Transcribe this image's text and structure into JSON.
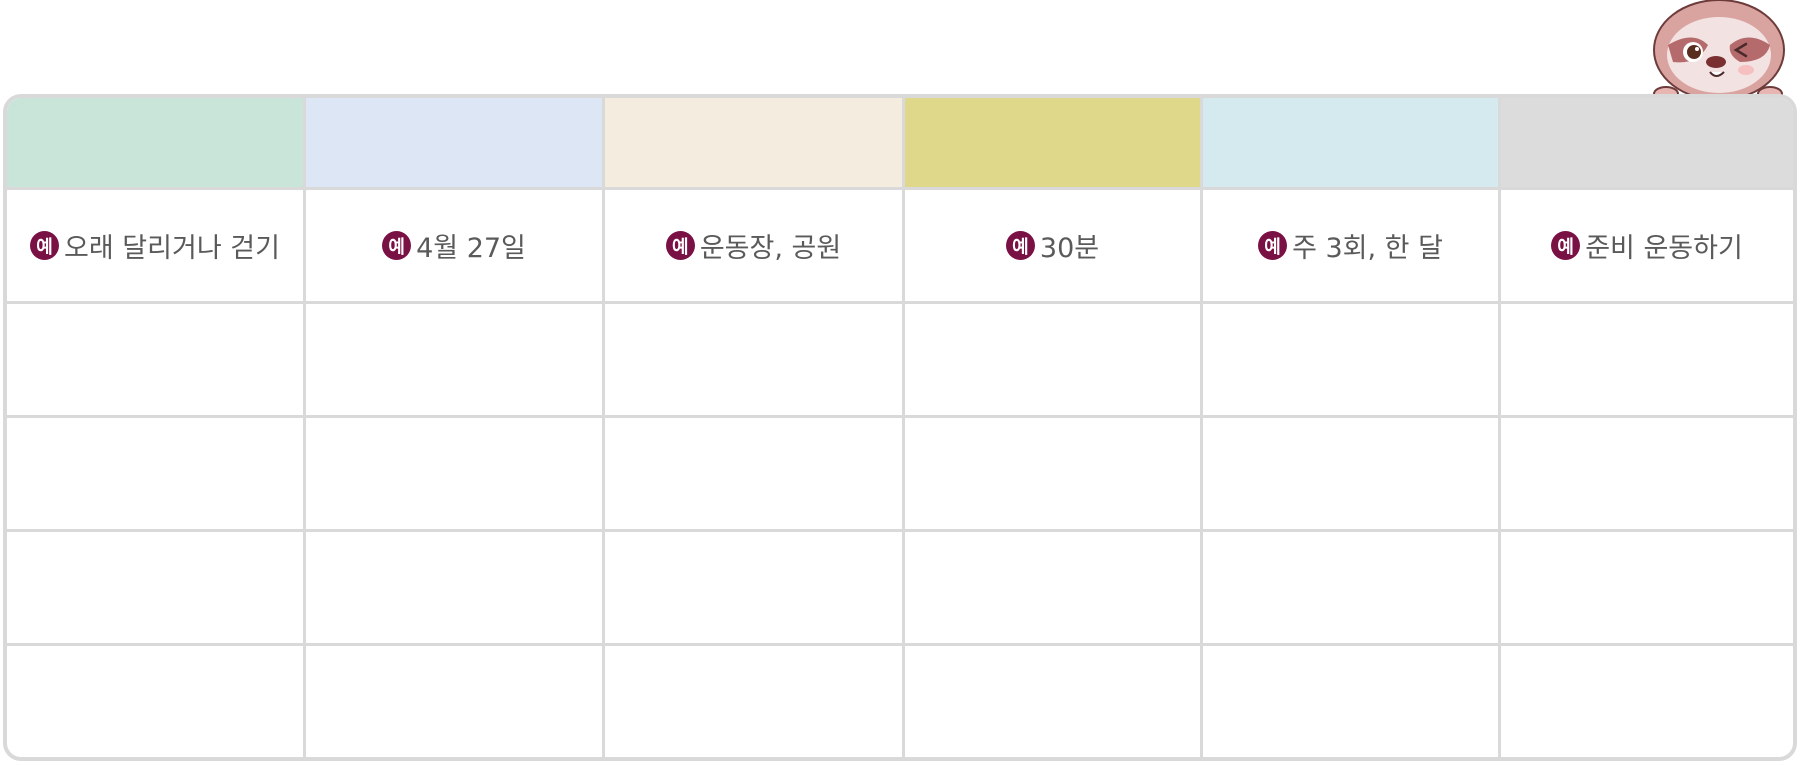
{
  "header_colors": [
    "#c9e4d8",
    "#dde6f4",
    "#f4ecde",
    "#dfd78a",
    "#d4eaee",
    "#dcdcdc"
  ],
  "example_badge": "예",
  "example_row": [
    "오래 달리거나 걷기",
    "4월 27일",
    "운동장, 공원",
    "30분",
    "주 3회, 한 달",
    "준비 운동하기"
  ],
  "empty_rows": 4,
  "mascot": "sloth-mascot"
}
